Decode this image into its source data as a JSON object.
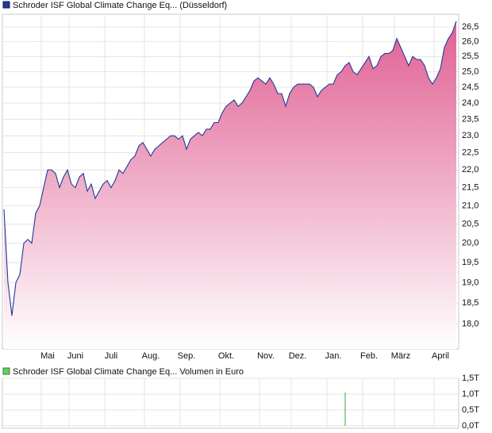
{
  "chart_data": [
    {
      "type": "area",
      "log_scale": true,
      "grid": true,
      "ylim": [
        17.43,
        26.94
      ],
      "yticks": [
        {
          "value": 18,
          "label": "18,0"
        },
        {
          "value": 18.5,
          "label": "18,5"
        },
        {
          "value": 19,
          "label": "19,0"
        },
        {
          "value": 19.5,
          "label": "19,5"
        },
        {
          "value": 20,
          "label": "20,0"
        },
        {
          "value": 20.5,
          "label": "20,5"
        },
        {
          "value": 21,
          "label": "21,0"
        },
        {
          "value": 21.5,
          "label": "21,5"
        },
        {
          "value": 22,
          "label": "22,0"
        },
        {
          "value": 22.5,
          "label": "22,5"
        },
        {
          "value": 23,
          "label": "23,0"
        },
        {
          "value": 23.5,
          "label": "23,5"
        },
        {
          "value": 24,
          "label": "24,0"
        },
        {
          "value": 24.5,
          "label": "24,5"
        },
        {
          "value": 25,
          "label": "25,0"
        },
        {
          "value": 25.5,
          "label": "25,5"
        },
        {
          "value": 26,
          "label": "26,0"
        },
        {
          "value": 26.5,
          "label": "26,5"
        }
      ],
      "categories": [
        null,
        null,
        null,
        null,
        null,
        null,
        null,
        null,
        null,
        null,
        null,
        "Mai",
        null,
        null,
        null,
        null,
        null,
        null,
        "Juni",
        null,
        null,
        null,
        null,
        null,
        null,
        null,
        null,
        "Juli",
        null,
        null,
        null,
        null,
        null,
        null,
        null,
        null,
        null,
        "Aug.",
        null,
        null,
        null,
        null,
        null,
        null,
        null,
        null,
        "Sep.",
        null,
        null,
        null,
        null,
        null,
        null,
        null,
        null,
        null,
        "Okt.",
        null,
        null,
        null,
        null,
        null,
        null,
        null,
        null,
        null,
        "Nov.",
        null,
        null,
        null,
        null,
        null,
        null,
        null,
        "Dez.",
        null,
        null,
        null,
        null,
        null,
        null,
        null,
        null,
        "Jan.",
        null,
        null,
        null,
        null,
        null,
        null,
        null,
        null,
        "Feb.",
        null,
        null,
        null,
        null,
        null,
        null,
        null,
        "März",
        null,
        null,
        null,
        null,
        null,
        null,
        null,
        null,
        null,
        "April",
        null,
        null,
        null,
        null
      ],
      "series": [
        {
          "name": "Schroder ISF Global Climate Change Eq... (Düsseldorf)",
          "color": "#1f3a99",
          "values": [
            20.9,
            19.0,
            18.2,
            19.0,
            19.2,
            20.0,
            20.1,
            20.0,
            20.8,
            21.0,
            21.5,
            22.0,
            22.0,
            21.9,
            21.5,
            21.8,
            22.0,
            21.6,
            21.5,
            21.8,
            21.9,
            21.4,
            21.6,
            21.2,
            21.4,
            21.6,
            21.7,
            21.5,
            21.7,
            22.0,
            21.9,
            22.1,
            22.3,
            22.4,
            22.7,
            22.8,
            22.6,
            22.4,
            22.6,
            22.7,
            22.8,
            22.9,
            23.0,
            23.0,
            22.9,
            23.0,
            22.6,
            22.9,
            23.0,
            23.1,
            23.0,
            23.2,
            23.2,
            23.4,
            23.4,
            23.7,
            23.9,
            24.0,
            24.1,
            23.9,
            24.0,
            24.2,
            24.4,
            24.7,
            24.8,
            24.7,
            24.6,
            24.8,
            24.6,
            24.3,
            24.3,
            23.9,
            24.3,
            24.5,
            24.6,
            24.6,
            24.6,
            24.6,
            24.5,
            24.2,
            24.4,
            24.5,
            24.6,
            24.6,
            24.9,
            25.0,
            25.2,
            25.3,
            25.0,
            24.9,
            25.1,
            25.3,
            25.5,
            25.1,
            25.2,
            25.5,
            25.6,
            25.6,
            25.7,
            26.1,
            25.8,
            25.5,
            25.2,
            25.5,
            25.4,
            25.4,
            25.2,
            24.8,
            24.6,
            24.8,
            25.1,
            25.8,
            26.1,
            26.3,
            26.7
          ]
        }
      ]
    },
    {
      "type": "bar",
      "grid": true,
      "ylim": [
        0,
        1500000000000
      ],
      "yticks": [
        {
          "value": 0,
          "label": "0,0T"
        },
        {
          "value": 500000000000,
          "label": "0,5T"
        },
        {
          "value": 1000000000000,
          "label": "1,0T"
        },
        {
          "value": 1500000000000,
          "label": "1,5T"
        }
      ],
      "series": [
        {
          "name": "Schroder ISF Global Climate Change Eq... Volumen in Euro",
          "color": "#33aa33",
          "values": [
            0,
            0,
            0,
            0,
            0,
            0,
            0,
            0,
            0,
            0,
            0,
            0,
            0,
            0,
            0,
            0,
            0,
            0,
            0,
            0,
            0,
            0,
            0,
            0,
            0,
            0,
            0,
            0,
            0,
            0,
            0,
            0,
            0,
            0,
            0,
            0,
            0,
            0,
            0,
            0,
            0,
            0,
            0,
            0,
            0,
            0,
            0,
            0,
            0,
            0,
            0,
            0,
            0,
            0,
            0,
            0,
            0,
            0,
            0,
            0,
            0,
            0,
            0,
            0,
            0,
            0,
            0,
            0,
            0,
            0,
            0,
            0,
            0,
            0,
            0,
            0,
            0,
            0,
            0,
            0,
            0,
            0,
            0,
            0,
            0,
            0,
            1050000000000,
            0,
            0,
            0,
            0,
            0,
            0,
            0,
            0,
            0,
            0,
            0,
            0,
            0,
            0,
            0,
            0,
            0,
            0,
            0,
            0,
            0,
            0,
            0,
            0,
            0,
            0,
            0,
            0
          ]
        }
      ]
    }
  ]
}
